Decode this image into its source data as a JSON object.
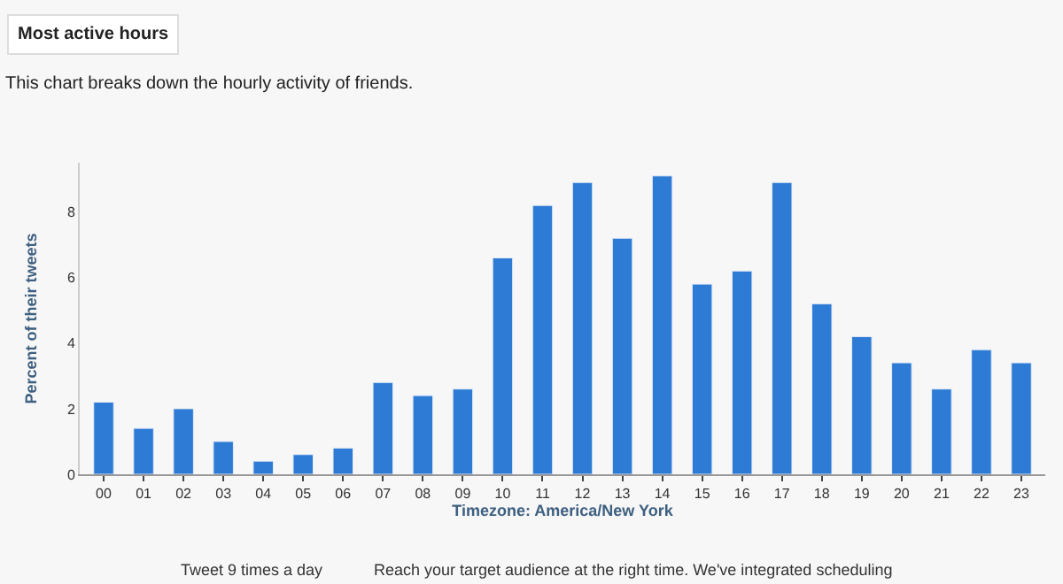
{
  "chart_data": {
    "type": "bar",
    "title": "Most active hours",
    "subtitle": "This chart breaks down the hourly activity of friends.",
    "xlabel": "Timezone: America/New York",
    "ylabel": "Percent of their tweets",
    "categories": [
      "00",
      "01",
      "02",
      "03",
      "04",
      "05",
      "06",
      "07",
      "08",
      "09",
      "10",
      "11",
      "12",
      "13",
      "14",
      "15",
      "16",
      "17",
      "18",
      "19",
      "20",
      "21",
      "22",
      "23"
    ],
    "values": [
      2.2,
      1.4,
      2.0,
      1.0,
      0.4,
      0.6,
      0.8,
      2.8,
      2.4,
      2.6,
      6.6,
      8.2,
      8.9,
      7.2,
      9.1,
      5.8,
      6.2,
      8.9,
      5.2,
      4.2,
      3.4,
      2.6,
      3.8,
      3.4
    ],
    "color": "#2e7bd6",
    "ylim": [
      0,
      9.5
    ],
    "yticks": [
      0,
      2,
      4,
      6,
      8
    ],
    "grid": false,
    "legend": false,
    "annotations": [
      "Tweet 9 times a day",
      "Reach your target audience at the right time. We've integrated scheduling"
    ]
  }
}
